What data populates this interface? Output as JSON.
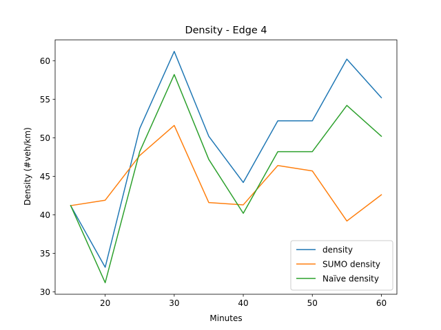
{
  "chart_data": {
    "type": "line",
    "title": "Density - Edge 4",
    "xlabel": "Minutes",
    "ylabel": "Density (#veh/km)",
    "x": [
      15,
      20,
      25,
      30,
      35,
      40,
      45,
      50,
      55,
      60
    ],
    "xlim": [
      12.75,
      62.25
    ],
    "ylim": [
      29.7,
      62.7
    ],
    "xticks": [
      20,
      30,
      40,
      50,
      60
    ],
    "yticks": [
      30,
      35,
      40,
      45,
      50,
      55,
      60
    ],
    "grid": false,
    "legend_position": "lower right",
    "series": [
      {
        "name": "density",
        "color": "#1f77b4",
        "values": [
          41.2,
          33.2,
          51.2,
          61.2,
          50.2,
          44.2,
          52.2,
          52.2,
          60.2,
          55.2
        ]
      },
      {
        "name": "SUMO density",
        "color": "#ff7f0e",
        "values": [
          41.2,
          41.9,
          47.7,
          51.6,
          41.6,
          41.3,
          46.4,
          45.7,
          39.2,
          42.6
        ]
      },
      {
        "name": "Naïve density",
        "color": "#2ca02c",
        "values": [
          41.2,
          31.2,
          48.2,
          58.2,
          47.2,
          40.2,
          48.2,
          48.2,
          54.2,
          50.2
        ]
      }
    ]
  }
}
